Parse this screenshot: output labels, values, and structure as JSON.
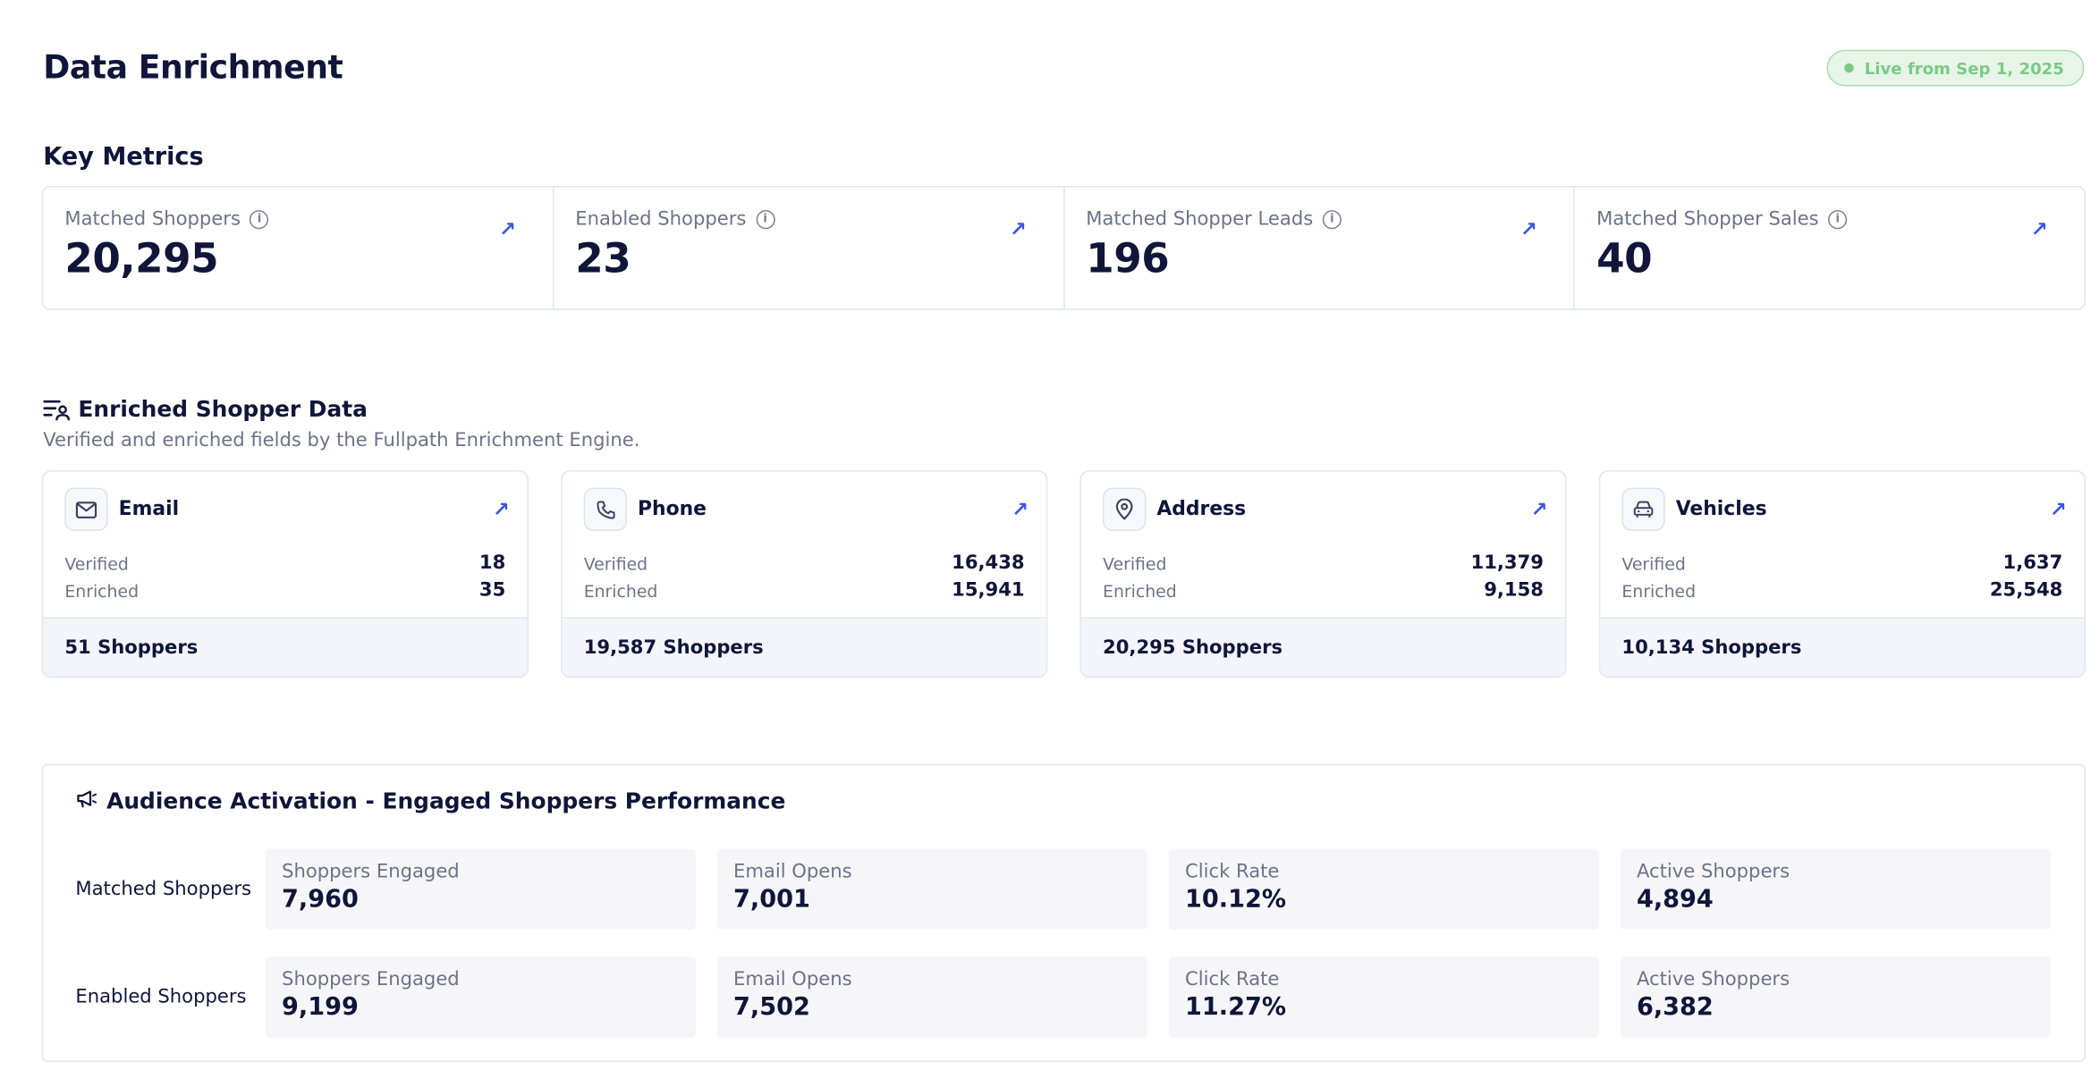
{
  "header": {
    "title": "Data Enrichment",
    "badge": "Live from Sep 1, 2025"
  },
  "key_metrics": {
    "title": "Key Metrics",
    "items": [
      {
        "label": "Matched Shoppers",
        "value": "20,295"
      },
      {
        "label": "Enabled Shoppers",
        "value": "23"
      },
      {
        "label": "Matched Shopper Leads",
        "value": "196"
      },
      {
        "label": "Matched Shopper Sales",
        "value": "40"
      }
    ]
  },
  "enriched": {
    "title": "Enriched Shopper Data",
    "subtitle": "Verified and enriched fields by the Fullpath Enrichment Engine.",
    "cards": [
      {
        "title": "Email",
        "icon": "mail-icon",
        "verified_label": "Verified",
        "verified": "18",
        "enriched_label": "Enriched",
        "enriched": "35",
        "footer": "51 Shoppers"
      },
      {
        "title": "Phone",
        "icon": "phone-icon",
        "verified_label": "Verified",
        "verified": "16,438",
        "enriched_label": "Enriched",
        "enriched": "15,941",
        "footer": "19,587 Shoppers"
      },
      {
        "title": "Address",
        "icon": "map-pin-icon",
        "verified_label": "Verified",
        "verified": "11,379",
        "enriched_label": "Enriched",
        "enriched": "9,158",
        "footer": "20,295 Shoppers"
      },
      {
        "title": "Vehicles",
        "icon": "car-icon",
        "verified_label": "Verified",
        "verified": "1,637",
        "enriched_label": "Enriched",
        "enriched": "25,548",
        "footer": "10,134 Shoppers"
      }
    ]
  },
  "activation": {
    "title": "Audience Activation - Engaged Shoppers Performance",
    "rows": [
      {
        "label": "Matched Shoppers",
        "cells": [
          {
            "label": "Shoppers Engaged",
            "value": "7,960"
          },
          {
            "label": "Email Opens",
            "value": "7,001"
          },
          {
            "label": "Click Rate",
            "value": "10.12%"
          },
          {
            "label": "Active Shoppers",
            "value": "4,894"
          }
        ]
      },
      {
        "label": "Enabled Shoppers",
        "cells": [
          {
            "label": "Shoppers Engaged",
            "value": "9,199"
          },
          {
            "label": "Email Opens",
            "value": "7,502"
          },
          {
            "label": "Click Rate",
            "value": "11.27%"
          },
          {
            "label": "Active Shoppers",
            "value": "6,382"
          }
        ]
      }
    ]
  },
  "colors": {
    "accent": "#3956e6",
    "text": "#10163a",
    "muted": "#6c7388",
    "badge_green": "#7cc987",
    "badge_bg": "#e6f5e7",
    "card_footer_bg": "#f4f5fb"
  }
}
